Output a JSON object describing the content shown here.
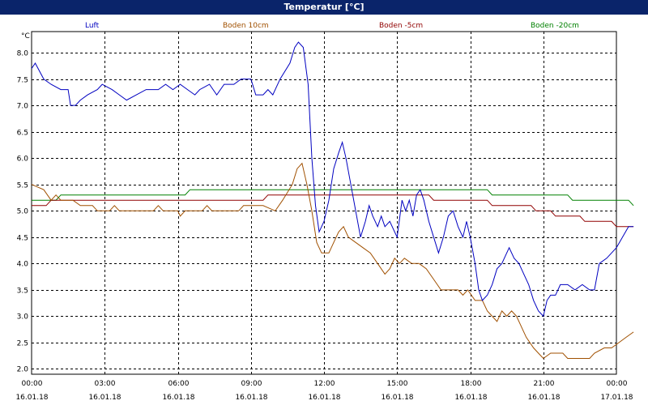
{
  "window": {
    "title": "Temperatur [°C]"
  },
  "colors": {
    "background": "#ffffff",
    "titlebar": "#0a246a",
    "grid": "#000000"
  },
  "chart_data": {
    "type": "line",
    "ylabel": "°C",
    "ylim": [
      1.9,
      8.4
    ],
    "xlim": [
      0,
      24
    ],
    "grid": true,
    "legend_position": "top",
    "y_ticks": [
      "2.0",
      "2.5",
      "3.0",
      "3.5",
      "4.0",
      "4.5",
      "5.0",
      "5.5",
      "6.0",
      "6.5",
      "7.0",
      "7.5",
      "8.0"
    ],
    "y_tick_values": [
      2.0,
      2.5,
      3.0,
      3.5,
      4.0,
      4.5,
      5.0,
      5.5,
      6.0,
      6.5,
      7.0,
      7.5,
      8.0
    ],
    "x_ticks": [
      {
        "time": "00:00",
        "date": "16.01.18"
      },
      {
        "time": "03:00",
        "date": "16.01.18"
      },
      {
        "time": "06:00",
        "date": "16.01.18"
      },
      {
        "time": "09:00",
        "date": "16.01.18"
      },
      {
        "time": "12:00",
        "date": "16.01.18"
      },
      {
        "time": "15:00",
        "date": "16.01.18"
      },
      {
        "time": "18:00",
        "date": "16.01.18"
      },
      {
        "time": "21:00",
        "date": "16.01.18"
      },
      {
        "time": "00:00",
        "date": "17.01.18"
      }
    ],
    "x_tick_values": [
      0,
      3,
      6,
      9,
      12,
      15,
      18,
      21,
      24
    ],
    "series": [
      {
        "name": "Luft",
        "color": "#0000c0",
        "points": [
          [
            0,
            7.7
          ],
          [
            0.15,
            7.8
          ],
          [
            0.5,
            7.5
          ],
          [
            0.8,
            7.4
          ],
          [
            1.2,
            7.3
          ],
          [
            1.5,
            7.3
          ],
          [
            1.6,
            7.0
          ],
          [
            1.8,
            7.0
          ],
          [
            2.0,
            7.1
          ],
          [
            2.3,
            7.2
          ],
          [
            2.7,
            7.3
          ],
          [
            2.9,
            7.4
          ],
          [
            3.3,
            7.3
          ],
          [
            3.6,
            7.2
          ],
          [
            3.9,
            7.1
          ],
          [
            4.3,
            7.2
          ],
          [
            4.7,
            7.3
          ],
          [
            5.2,
            7.3
          ],
          [
            5.5,
            7.4
          ],
          [
            5.8,
            7.3
          ],
          [
            6.1,
            7.4
          ],
          [
            6.4,
            7.3
          ],
          [
            6.7,
            7.2
          ],
          [
            6.9,
            7.3
          ],
          [
            7.3,
            7.4
          ],
          [
            7.6,
            7.2
          ],
          [
            7.9,
            7.4
          ],
          [
            8.3,
            7.4
          ],
          [
            8.6,
            7.5
          ],
          [
            9.0,
            7.5
          ],
          [
            9.2,
            7.2
          ],
          [
            9.5,
            7.2
          ],
          [
            9.7,
            7.3
          ],
          [
            9.9,
            7.2
          ],
          [
            10.2,
            7.5
          ],
          [
            10.6,
            7.8
          ],
          [
            10.8,
            8.1
          ],
          [
            10.95,
            8.2
          ],
          [
            11.15,
            8.1
          ],
          [
            11.35,
            7.4
          ],
          [
            11.5,
            6.0
          ],
          [
            11.65,
            5.1
          ],
          [
            11.8,
            4.6
          ],
          [
            12.0,
            4.8
          ],
          [
            12.2,
            5.2
          ],
          [
            12.4,
            5.8
          ],
          [
            12.6,
            6.1
          ],
          [
            12.75,
            6.3
          ],
          [
            12.9,
            6.0
          ],
          [
            13.1,
            5.5
          ],
          [
            13.3,
            5.0
          ],
          [
            13.5,
            4.5
          ],
          [
            13.7,
            4.8
          ],
          [
            13.85,
            5.1
          ],
          [
            14.0,
            4.9
          ],
          [
            14.2,
            4.7
          ],
          [
            14.35,
            4.9
          ],
          [
            14.5,
            4.7
          ],
          [
            14.7,
            4.8
          ],
          [
            14.9,
            4.6
          ],
          [
            15.0,
            4.5
          ],
          [
            15.2,
            5.2
          ],
          [
            15.35,
            5.0
          ],
          [
            15.5,
            5.2
          ],
          [
            15.65,
            4.9
          ],
          [
            15.8,
            5.3
          ],
          [
            15.95,
            5.4
          ],
          [
            16.1,
            5.2
          ],
          [
            16.3,
            4.8
          ],
          [
            16.5,
            4.5
          ],
          [
            16.7,
            4.2
          ],
          [
            16.9,
            4.5
          ],
          [
            17.1,
            4.9
          ],
          [
            17.3,
            5.0
          ],
          [
            17.5,
            4.7
          ],
          [
            17.7,
            4.5
          ],
          [
            17.85,
            4.8
          ],
          [
            18.0,
            4.5
          ],
          [
            18.2,
            4.0
          ],
          [
            18.35,
            3.5
          ],
          [
            18.5,
            3.3
          ],
          [
            18.7,
            3.4
          ],
          [
            18.9,
            3.6
          ],
          [
            19.1,
            3.9
          ],
          [
            19.3,
            4.0
          ],
          [
            19.5,
            4.2
          ],
          [
            19.6,
            4.3
          ],
          [
            19.8,
            4.1
          ],
          [
            20.0,
            4.0
          ],
          [
            20.2,
            3.8
          ],
          [
            20.4,
            3.6
          ],
          [
            20.6,
            3.3
          ],
          [
            20.8,
            3.1
          ],
          [
            21.0,
            3.0
          ],
          [
            21.15,
            3.3
          ],
          [
            21.3,
            3.4
          ],
          [
            21.5,
            3.4
          ],
          [
            21.7,
            3.6
          ],
          [
            22.0,
            3.6
          ],
          [
            22.3,
            3.5
          ],
          [
            22.6,
            3.6
          ],
          [
            22.9,
            3.5
          ],
          [
            23.1,
            3.5
          ],
          [
            23.3,
            4.0
          ],
          [
            23.6,
            4.1
          ],
          [
            23.8,
            4.2
          ],
          [
            24.0,
            4.3
          ],
          [
            24.5,
            4.7
          ],
          [
            24.7,
            4.7
          ]
        ]
      },
      {
        "name": "Boden 10cm",
        "color": "#a05000",
        "points": [
          [
            0,
            5.5
          ],
          [
            0.5,
            5.4
          ],
          [
            0.8,
            5.2
          ],
          [
            1.0,
            5.3
          ],
          [
            1.2,
            5.2
          ],
          [
            1.7,
            5.2
          ],
          [
            2.0,
            5.1
          ],
          [
            2.5,
            5.1
          ],
          [
            2.7,
            5.0
          ],
          [
            3.2,
            5.0
          ],
          [
            3.4,
            5.1
          ],
          [
            3.6,
            5.0
          ],
          [
            4.5,
            5.0
          ],
          [
            5.0,
            5.0
          ],
          [
            5.2,
            5.1
          ],
          [
            5.4,
            5.0
          ],
          [
            6.0,
            5.0
          ],
          [
            6.1,
            4.9
          ],
          [
            6.3,
            5.0
          ],
          [
            7.0,
            5.0
          ],
          [
            7.2,
            5.1
          ],
          [
            7.4,
            5.0
          ],
          [
            8.5,
            5.0
          ],
          [
            8.7,
            5.1
          ],
          [
            9.5,
            5.1
          ],
          [
            10.0,
            5.0
          ],
          [
            10.3,
            5.2
          ],
          [
            10.7,
            5.5
          ],
          [
            10.9,
            5.8
          ],
          [
            11.1,
            5.9
          ],
          [
            11.3,
            5.5
          ],
          [
            11.5,
            5.0
          ],
          [
            11.7,
            4.4
          ],
          [
            11.9,
            4.2
          ],
          [
            12.2,
            4.2
          ],
          [
            12.4,
            4.4
          ],
          [
            12.6,
            4.6
          ],
          [
            12.8,
            4.7
          ],
          [
            13.0,
            4.5
          ],
          [
            13.3,
            4.4
          ],
          [
            13.6,
            4.3
          ],
          [
            13.9,
            4.2
          ],
          [
            14.2,
            4.0
          ],
          [
            14.5,
            3.8
          ],
          [
            14.7,
            3.9
          ],
          [
            14.9,
            4.1
          ],
          [
            15.1,
            4.0
          ],
          [
            15.3,
            4.1
          ],
          [
            15.6,
            4.0
          ],
          [
            15.9,
            4.0
          ],
          [
            16.2,
            3.9
          ],
          [
            16.5,
            3.7
          ],
          [
            16.8,
            3.5
          ],
          [
            17.5,
            3.5
          ],
          [
            17.7,
            3.4
          ],
          [
            17.9,
            3.5
          ],
          [
            18.2,
            3.3
          ],
          [
            18.5,
            3.3
          ],
          [
            18.7,
            3.1
          ],
          [
            18.9,
            3.0
          ],
          [
            19.1,
            2.9
          ],
          [
            19.3,
            3.1
          ],
          [
            19.5,
            3.0
          ],
          [
            19.7,
            3.1
          ],
          [
            19.9,
            3.0
          ],
          [
            20.1,
            2.8
          ],
          [
            20.3,
            2.6
          ],
          [
            20.6,
            2.4
          ],
          [
            20.8,
            2.3
          ],
          [
            21.0,
            2.2
          ],
          [
            21.3,
            2.3
          ],
          [
            21.8,
            2.3
          ],
          [
            22.0,
            2.2
          ],
          [
            22.9,
            2.2
          ],
          [
            23.1,
            2.3
          ],
          [
            23.5,
            2.4
          ],
          [
            23.8,
            2.4
          ],
          [
            24.1,
            2.5
          ],
          [
            24.4,
            2.6
          ],
          [
            24.7,
            2.7
          ]
        ]
      },
      {
        "name": "Boden -5cm",
        "color": "#900000",
        "points": [
          [
            0,
            5.1
          ],
          [
            0.6,
            5.1
          ],
          [
            0.8,
            5.2
          ],
          [
            9.5,
            5.2
          ],
          [
            9.7,
            5.3
          ],
          [
            16.3,
            5.3
          ],
          [
            16.5,
            5.2
          ],
          [
            18.7,
            5.2
          ],
          [
            18.9,
            5.1
          ],
          [
            20.5,
            5.1
          ],
          [
            20.7,
            5.0
          ],
          [
            21.3,
            5.0
          ],
          [
            21.5,
            4.9
          ],
          [
            22.5,
            4.9
          ],
          [
            22.7,
            4.8
          ],
          [
            23.8,
            4.8
          ],
          [
            24.0,
            4.7
          ],
          [
            24.7,
            4.7
          ]
        ]
      },
      {
        "name": "Boden -20cm",
        "color": "#008000",
        "points": [
          [
            0,
            5.2
          ],
          [
            1.0,
            5.2
          ],
          [
            1.2,
            5.3
          ],
          [
            6.3,
            5.3
          ],
          [
            6.5,
            5.4
          ],
          [
            18.7,
            5.4
          ],
          [
            18.9,
            5.3
          ],
          [
            22.0,
            5.3
          ],
          [
            22.2,
            5.2
          ],
          [
            24.5,
            5.2
          ],
          [
            24.7,
            5.1
          ]
        ]
      }
    ]
  }
}
